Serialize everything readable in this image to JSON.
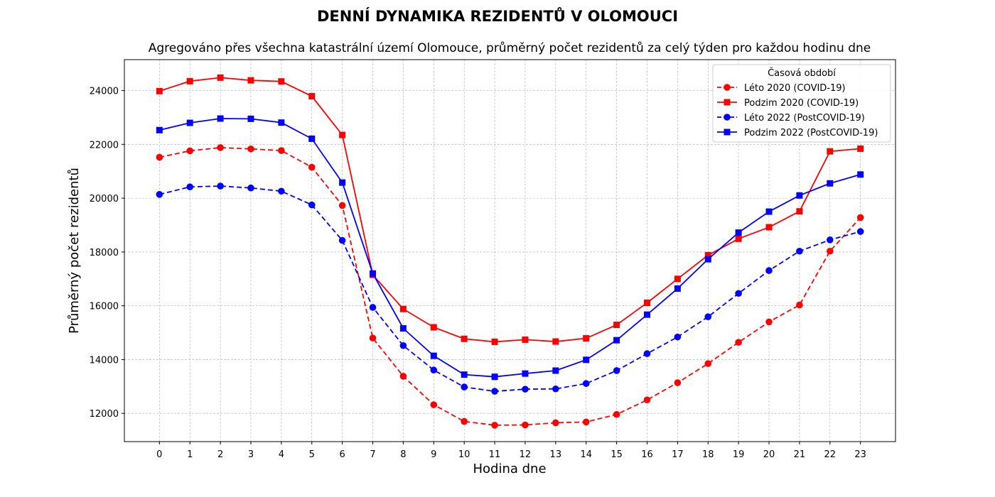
{
  "chart_data": {
    "type": "line",
    "title": "DENNÍ DYNAMIKA REZIDENTŮ V OLOMOUCI",
    "subtitle": "Agregováno přes všechna katastrální území Olomouce, průměrný počet rezidentů za celý týden pro každou hodinu dne",
    "xlabel": "Hodina dne",
    "ylabel": "Průměrný počet rezidentů",
    "x": [
      0,
      1,
      2,
      3,
      4,
      5,
      6,
      7,
      8,
      9,
      10,
      11,
      12,
      13,
      14,
      15,
      16,
      17,
      18,
      19,
      20,
      21,
      22,
      23
    ],
    "xlim": [
      -1.15,
      24.15
    ],
    "ylim": [
      10950,
      25150
    ],
    "yticks": [
      12000,
      14000,
      16000,
      18000,
      20000,
      22000,
      24000
    ],
    "grid": true,
    "legend": {
      "title": "Časová období",
      "position": "top-right"
    },
    "series": [
      {
        "name": "Léto 2020 (COVID-19)",
        "color": "#ff0000",
        "linestyle": "dashed",
        "marker": "circle",
        "values": [
          21520,
          21760,
          21880,
          21830,
          21770,
          21150,
          19730,
          14800,
          13380,
          12320,
          11700,
          11560,
          11570,
          11650,
          11680,
          11960,
          12500,
          13140,
          13850,
          14640,
          15400,
          16030,
          18030,
          19280
        ]
      },
      {
        "name": "Podzim 2020 (COVID-19)",
        "color": "#ff0000",
        "linestyle": "solid",
        "marker": "square",
        "values": [
          23980,
          24350,
          24480,
          24380,
          24340,
          23790,
          22350,
          17150,
          15880,
          15200,
          14770,
          14660,
          14740,
          14670,
          14790,
          15290,
          16110,
          17000,
          17880,
          18490,
          18920,
          19510,
          21740,
          21840
        ]
      },
      {
        "name": "Léto 2022 (PostCOVID-19)",
        "color": "#0000ff",
        "linestyle": "dashed",
        "marker": "circle",
        "values": [
          20140,
          20420,
          20450,
          20380,
          20260,
          19750,
          18430,
          15940,
          14520,
          13610,
          12980,
          12820,
          12900,
          12910,
          13110,
          13590,
          14220,
          14840,
          15590,
          16460,
          17310,
          18030,
          18450,
          18760
        ]
      },
      {
        "name": "Podzim 2022 (PostCOVID-19)",
        "color": "#0000ff",
        "linestyle": "solid",
        "marker": "square",
        "values": [
          22530,
          22800,
          22960,
          22950,
          22810,
          22210,
          20580,
          17200,
          15160,
          14140,
          13440,
          13360,
          13480,
          13590,
          13990,
          14720,
          15670,
          16640,
          17730,
          18720,
          19500,
          20100,
          20550,
          20880
        ]
      }
    ]
  }
}
